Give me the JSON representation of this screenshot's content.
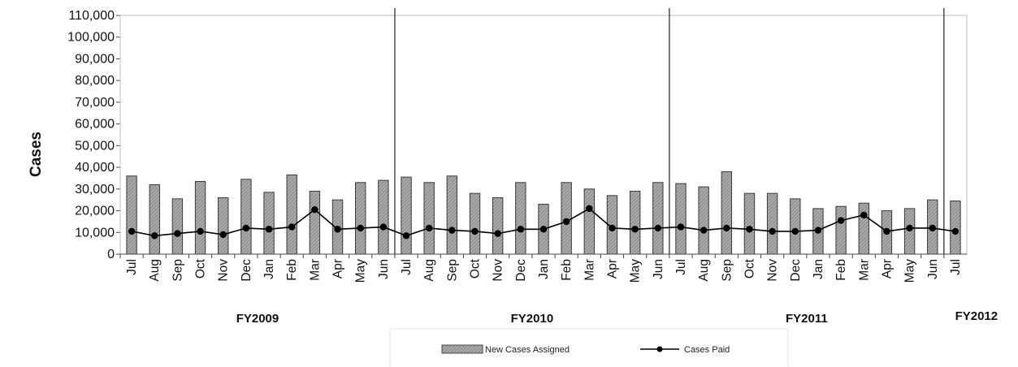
{
  "chart_data": {
    "type": "bar",
    "title": "",
    "ylabel": "Cases",
    "xlabel": "",
    "ylim": [
      0,
      110000
    ],
    "ytick_labels": [
      "0",
      "10,000",
      "20,000",
      "30,000",
      "40,000",
      "50,000",
      "60,000",
      "70,000",
      "80,000",
      "90,000",
      "100,000",
      "110,000"
    ],
    "categories": [
      "Jul",
      "Aug",
      "Sep",
      "Oct",
      "Nov",
      "Dec",
      "Jan",
      "Feb",
      "Mar",
      "Apr",
      "May",
      "Jun",
      "Jul",
      "Aug",
      "Sep",
      "Oct",
      "Nov",
      "Dec",
      "Jan",
      "Feb",
      "Mar",
      "Apr",
      "May",
      "Jun",
      "Jul",
      "Aug",
      "Sep",
      "Oct",
      "Nov",
      "Dec",
      "Jan",
      "Feb",
      "Mar",
      "Apr",
      "May",
      "Jun",
      "Jul"
    ],
    "fiscal_years": [
      {
        "label": "FY2009",
        "start": 0,
        "end": 11
      },
      {
        "label": "FY2010",
        "start": 12,
        "end": 23
      },
      {
        "label": "FY2011",
        "start": 24,
        "end": 35
      },
      {
        "label": "FY2012",
        "start": 36,
        "end": 36
      }
    ],
    "series": [
      {
        "name": "New Cases Assigned",
        "kind": "bar",
        "color": "#9e9e9e",
        "values": [
          36000,
          32000,
          25500,
          33500,
          26000,
          34500,
          28500,
          36500,
          29000,
          25000,
          33000,
          34000,
          35500,
          33000,
          36000,
          28000,
          26000,
          33000,
          23000,
          33000,
          30000,
          27000,
          29000,
          33000,
          32500,
          31000,
          38000,
          28000,
          28000,
          25500,
          21000,
          22000,
          23500,
          20000,
          21000,
          25000,
          24500
        ]
      },
      {
        "name": "Cases Paid",
        "kind": "line",
        "color": "#000000",
        "values": [
          10500,
          8500,
          9500,
          10500,
          9000,
          12000,
          11500,
          12500,
          20500,
          11500,
          12000,
          12500,
          8500,
          12000,
          11000,
          10500,
          9500,
          11500,
          11500,
          15000,
          21000,
          12000,
          11500,
          12000,
          12500,
          11000,
          12000,
          11500,
          10500,
          10500,
          11000,
          15500,
          18000,
          10500,
          12000,
          12000,
          10500
        ]
      }
    ],
    "legend": {
      "position": "bottom"
    },
    "grid": false
  }
}
